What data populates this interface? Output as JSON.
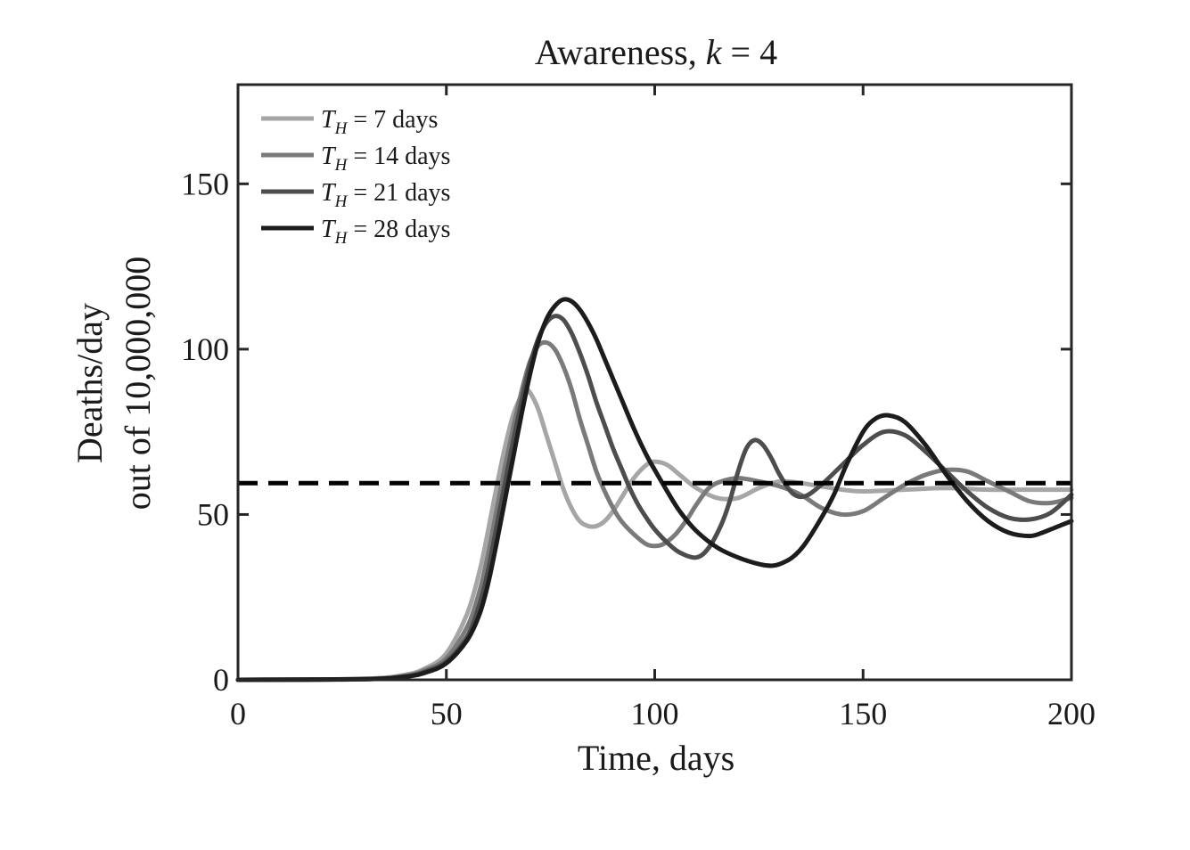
{
  "chart_data": {
    "type": "line",
    "title_prefix": "Awareness, ",
    "title_var": "k",
    "title_suffix": " = 4",
    "xlabel": "Time, days",
    "ylabel_line1": "Deaths/day",
    "ylabel_line2": "out of 10,000,000",
    "xlim": [
      0,
      200
    ],
    "ylim": [
      0,
      180
    ],
    "xticks": [
      0,
      50,
      100,
      150,
      200
    ],
    "yticks": [
      0,
      50,
      100,
      150
    ],
    "xtick_labels": [
      "0",
      "50",
      "100",
      "150",
      "200"
    ],
    "ytick_labels": [
      "0",
      "50",
      "100",
      "150"
    ],
    "legend_position": "top-left",
    "reference_line": {
      "y": 59.5,
      "style": "dashed",
      "color": "#000000"
    },
    "series": [
      {
        "name": "T_H = 7 days",
        "legend_var": "T",
        "legend_sub": "H",
        "legend_rest": " = 7 days",
        "color": "#a6a6a6",
        "x": [
          0,
          30,
          40,
          45,
          50,
          55,
          58,
          60,
          62,
          64,
          66,
          68,
          69,
          70,
          72,
          74,
          76,
          78,
          80,
          82,
          84,
          86,
          88,
          90,
          92,
          95,
          98,
          100,
          103,
          106,
          110,
          115,
          120,
          125,
          130,
          135,
          140,
          145,
          150,
          160,
          170,
          180,
          190,
          200
        ],
        "y": [
          0,
          0.3,
          1.5,
          3.5,
          8,
          20,
          33,
          45,
          58,
          70,
          80,
          86,
          87.5,
          87,
          82,
          74,
          66,
          58,
          52,
          48,
          46.5,
          46.5,
          48,
          51,
          55,
          61,
          65,
          66,
          65,
          62,
          58,
          55,
          55,
          58,
          60,
          59.5,
          58.5,
          57.5,
          57,
          57.5,
          58,
          57.5,
          57.5,
          57.5
        ]
      },
      {
        "name": "T_H = 14 days",
        "legend_var": "T",
        "legend_sub": "H",
        "legend_rest": " = 14 days",
        "color": "#7a7a7a",
        "x": [
          0,
          30,
          40,
          45,
          50,
          55,
          58,
          60,
          62,
          64,
          66,
          68,
          70,
          72,
          74,
          76,
          78,
          80,
          82,
          84,
          86,
          88,
          90,
          92,
          95,
          98,
          100,
          102,
          105,
          108,
          110,
          113,
          116,
          120,
          125,
          130,
          135,
          140,
          145,
          150,
          155,
          160,
          165,
          170,
          175,
          180,
          185,
          190,
          195,
          200
        ],
        "y": [
          0,
          0.2,
          1.2,
          3,
          6.5,
          16,
          27,
          38,
          51,
          64,
          76,
          87,
          96,
          101,
          102,
          100,
          95,
          88,
          79,
          71,
          63,
          57,
          52,
          48,
          44,
          41,
          40.5,
          41,
          44,
          49,
          53,
          58,
          60,
          61,
          60,
          58.5,
          56,
          52,
          50,
          51,
          55,
          59,
          62,
          63.5,
          63,
          60,
          57,
          54,
          53.5,
          55
        ]
      },
      {
        "name": "T_H = 21 days",
        "legend_var": "T",
        "legend_sub": "H",
        "legend_rest": " = 21 days",
        "color": "#4d4d4d",
        "x": [
          0,
          30,
          40,
          45,
          50,
          55,
          58,
          60,
          62,
          64,
          66,
          68,
          70,
          72,
          74,
          76,
          78,
          80,
          82,
          84,
          86,
          88,
          90,
          92,
          94,
          96,
          98,
          100,
          103,
          106,
          110,
          113,
          116,
          118,
          120,
          122,
          124,
          126,
          128,
          130,
          133,
          136,
          140,
          145,
          150,
          155,
          160,
          165,
          170,
          175,
          180,
          185,
          190,
          195,
          200
        ],
        "y": [
          0,
          0.2,
          1,
          2.5,
          5.5,
          13,
          23,
          33,
          46,
          59,
          72,
          84,
          95,
          103,
          108,
          110,
          109,
          105,
          99,
          92,
          84,
          77,
          70,
          64,
          58,
          53,
          49,
          45.5,
          41.5,
          38.5,
          37,
          40,
          47,
          54,
          63,
          70,
          72.5,
          71,
          67,
          62,
          56.5,
          55.5,
          59,
          65,
          71,
          75,
          74,
          69,
          63,
          57,
          52,
          49,
          48.5,
          50.5,
          56
        ]
      },
      {
        "name": "T_H = 28 days",
        "legend_var": "T",
        "legend_sub": "H",
        "legend_rest": " = 28 days",
        "color": "#1c1c1c",
        "x": [
          0,
          30,
          40,
          45,
          50,
          55,
          58,
          60,
          62,
          64,
          66,
          68,
          70,
          72,
          74,
          76,
          78,
          80,
          82,
          84,
          86,
          88,
          90,
          92,
          95,
          98,
          100,
          103,
          106,
          110,
          115,
          120,
          125,
          128,
          130,
          133,
          136,
          140,
          143,
          146,
          150,
          153,
          156,
          160,
          165,
          170,
          175,
          180,
          185,
          190,
          193,
          196,
          200
        ],
        "y": [
          0,
          0.2,
          0.9,
          2.2,
          5,
          12,
          20,
          29,
          41,
          54,
          67,
          80,
          92,
          102,
          109,
          113,
          115,
          114.5,
          112,
          108,
          103,
          97,
          91,
          85,
          76,
          68,
          63.5,
          57,
          51,
          45,
          40,
          37,
          35,
          34.5,
          35,
          37,
          41,
          49,
          56,
          65,
          75,
          79,
          80,
          78,
          71,
          62,
          54,
          48,
          44.5,
          43.5,
          44.5,
          46,
          48
        ]
      }
    ]
  }
}
